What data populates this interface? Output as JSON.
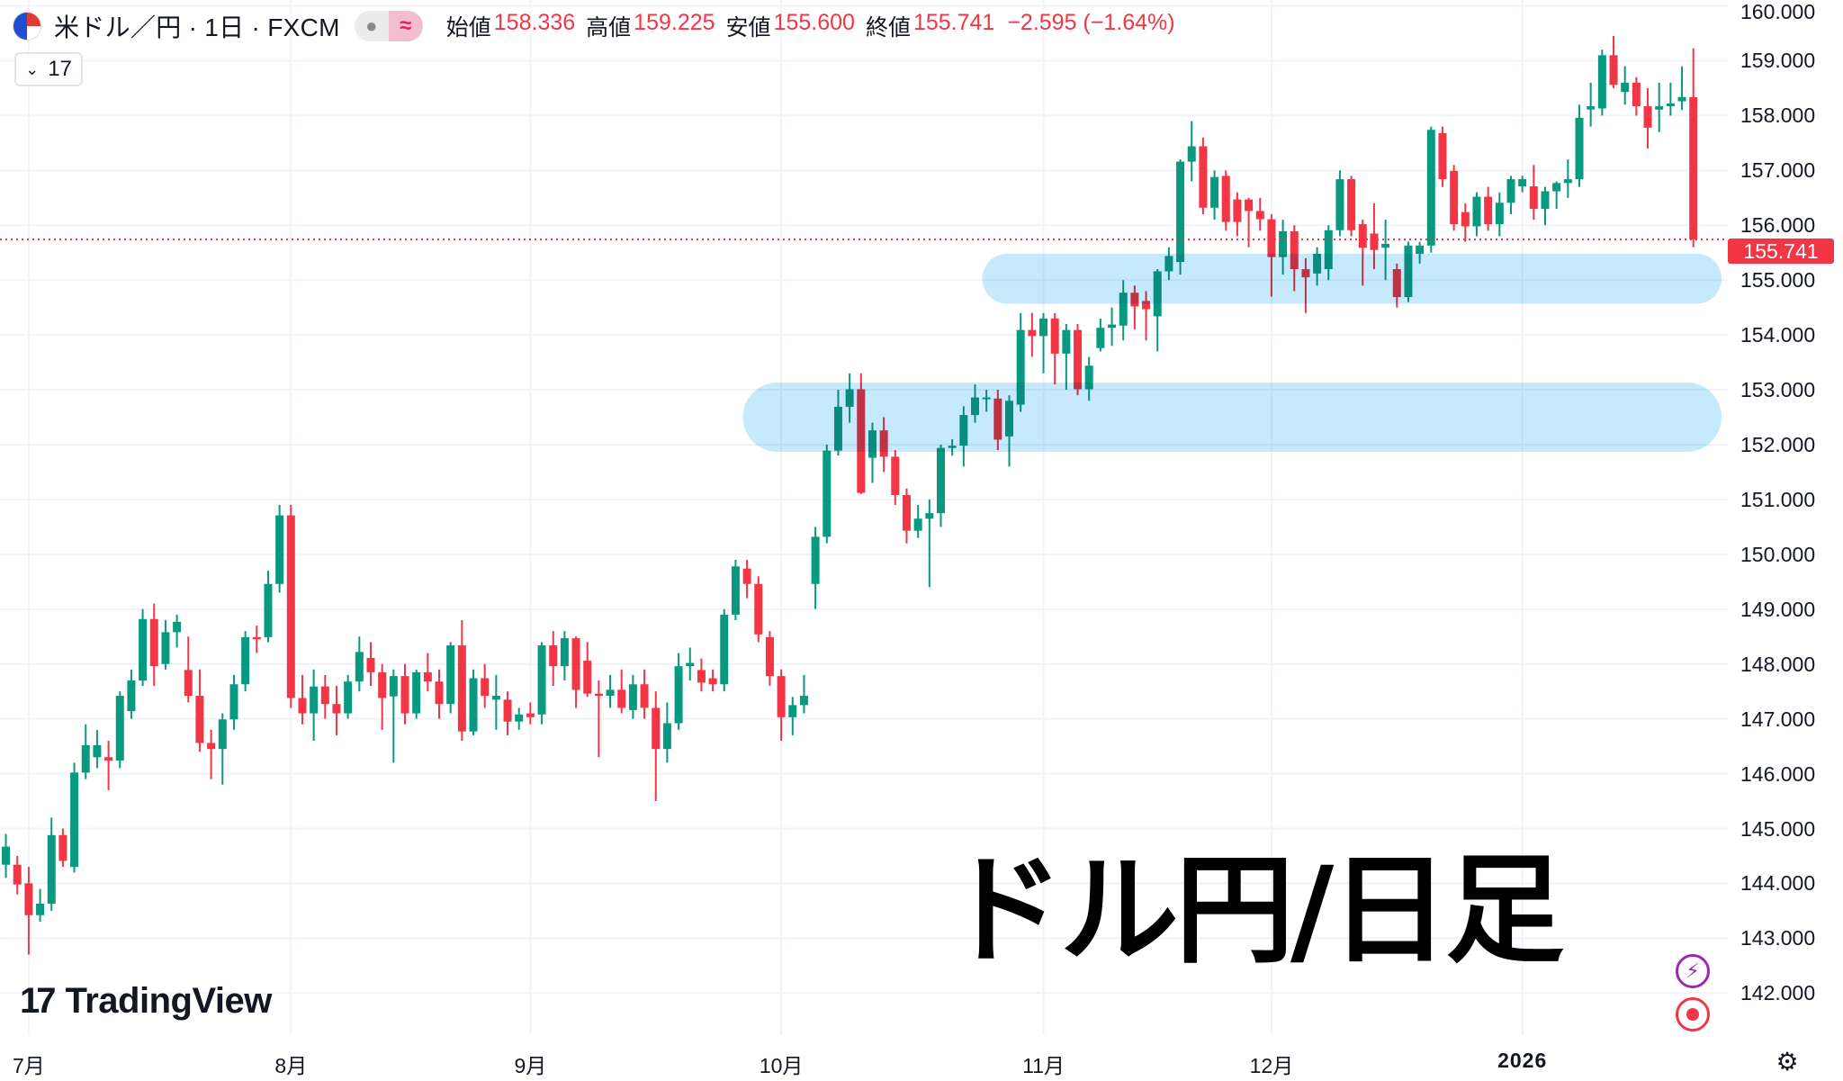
{
  "header": {
    "flag_icon": "us-jp-flag-icon",
    "title": "米ドル／円 · 1日 · FXCM",
    "pill_left": "●",
    "pill_right": "≈",
    "open_label": "始値",
    "open": "158.336",
    "high_label": "高値",
    "high": "159.225",
    "low_label": "安値",
    "low": "155.600",
    "close_label": "終値",
    "close": "155.741",
    "change": "−2.595 (−1.64%)"
  },
  "legend_toggle": {
    "chevron": "⌄",
    "count": "17"
  },
  "current_price_label": "155.741",
  "overlay_text": "ドル円/日足",
  "logo_text": "TradingView",
  "logo_mark": "17",
  "colors": {
    "up": "#089981",
    "down": "#f23645",
    "zone": "#bde5fb",
    "last_price": "#f23645"
  },
  "icons": {
    "bolt": "⚡",
    "settings": "⚙"
  },
  "chart_data": {
    "type": "candlestick",
    "symbol": "米ドル／円",
    "interval": "1日",
    "ylim": [
      142,
      160
    ],
    "y_ticks": [
      "142.000",
      "143.000",
      "144.000",
      "145.000",
      "146.000",
      "147.000",
      "148.000",
      "149.000",
      "150.000",
      "151.000",
      "152.000",
      "153.000",
      "154.000",
      "155.000",
      "156.000",
      "157.000",
      "158.000",
      "159.000",
      "160.000"
    ],
    "x_ticks": [
      {
        "label": "7月",
        "index": 2
      },
      {
        "label": "8月",
        "index": 25
      },
      {
        "label": "9月",
        "index": 46
      },
      {
        "label": "10月",
        "index": 68
      },
      {
        "label": "11月",
        "index": 91
      },
      {
        "label": "12月",
        "index": 111
      },
      {
        "label": "2026",
        "index": 133,
        "bold": true
      }
    ],
    "grid": true,
    "last_price": 155.741,
    "zones": [
      {
        "from": 154.7,
        "to": 155.35,
        "start_index": 88
      },
      {
        "from": 152.0,
        "to": 153.0,
        "start_index": 67
      }
    ],
    "ohlc": [
      [
        144.34,
        144.9,
        144.1,
        144.67
      ],
      [
        144.34,
        144.5,
        143.8,
        143.98
      ],
      [
        144.0,
        144.3,
        142.7,
        143.42
      ],
      [
        143.42,
        143.9,
        143.3,
        143.63
      ],
      [
        143.63,
        145.2,
        143.5,
        144.88
      ],
      [
        144.88,
        145.0,
        144.3,
        144.41
      ],
      [
        144.3,
        146.2,
        144.2,
        146.02
      ],
      [
        146.02,
        146.9,
        145.9,
        146.52
      ],
      [
        146.3,
        146.8,
        146.1,
        146.52
      ],
      [
        146.3,
        146.6,
        145.7,
        146.24
      ],
      [
        146.24,
        147.5,
        146.1,
        147.42
      ],
      [
        147.14,
        147.9,
        147.0,
        147.7
      ],
      [
        147.7,
        149.0,
        147.6,
        148.82
      ],
      [
        148.82,
        149.1,
        147.6,
        147.96
      ],
      [
        148.0,
        148.8,
        147.9,
        148.58
      ],
      [
        148.58,
        148.9,
        148.3,
        148.77
      ],
      [
        147.89,
        148.5,
        147.3,
        147.42
      ],
      [
        147.42,
        147.9,
        146.4,
        146.56
      ],
      [
        146.56,
        146.8,
        145.9,
        146.45
      ],
      [
        146.45,
        147.1,
        145.8,
        146.99
      ],
      [
        146.99,
        147.8,
        146.8,
        147.63
      ],
      [
        147.63,
        148.6,
        147.5,
        148.49
      ],
      [
        148.49,
        148.7,
        148.2,
        148.45
      ],
      [
        148.49,
        149.7,
        148.4,
        149.46
      ],
      [
        149.46,
        150.9,
        149.3,
        150.71
      ],
      [
        150.71,
        150.9,
        147.2,
        147.38
      ],
      [
        147.38,
        147.8,
        146.9,
        147.1
      ],
      [
        147.1,
        147.9,
        146.6,
        147.59
      ],
      [
        147.59,
        147.8,
        147.0,
        147.27
      ],
      [
        147.27,
        147.6,
        146.7,
        147.1
      ],
      [
        147.1,
        147.8,
        147.0,
        147.68
      ],
      [
        147.68,
        148.5,
        147.5,
        148.22
      ],
      [
        148.11,
        148.4,
        147.6,
        147.85
      ],
      [
        147.85,
        148.0,
        146.8,
        147.38
      ],
      [
        147.41,
        147.9,
        146.2,
        147.78
      ],
      [
        147.78,
        148.0,
        146.9,
        147.1
      ],
      [
        147.1,
        147.9,
        147.0,
        147.85
      ],
      [
        147.85,
        148.2,
        147.5,
        147.68
      ],
      [
        147.68,
        147.9,
        147.0,
        147.27
      ],
      [
        147.27,
        148.4,
        147.1,
        148.34
      ],
      [
        148.34,
        148.8,
        146.6,
        146.77
      ],
      [
        146.77,
        147.9,
        146.7,
        147.74
      ],
      [
        147.74,
        148.0,
        147.2,
        147.42
      ],
      [
        147.35,
        147.8,
        146.8,
        147.42
      ],
      [
        147.35,
        147.5,
        146.7,
        146.95
      ],
      [
        146.95,
        147.2,
        146.8,
        147.08
      ],
      [
        147.1,
        147.3,
        146.9,
        147.03
      ],
      [
        147.08,
        148.4,
        146.9,
        148.34
      ],
      [
        148.34,
        148.6,
        147.6,
        147.96
      ],
      [
        147.96,
        148.6,
        147.7,
        148.47
      ],
      [
        148.47,
        148.5,
        147.2,
        147.53
      ],
      [
        148.06,
        148.4,
        147.4,
        147.46
      ],
      [
        147.46,
        147.7,
        146.3,
        147.42
      ],
      [
        147.42,
        147.8,
        147.2,
        147.53
      ],
      [
        147.53,
        147.9,
        147.1,
        147.2
      ],
      [
        147.16,
        147.8,
        147.0,
        147.63
      ],
      [
        147.63,
        147.9,
        147.0,
        147.2
      ],
      [
        147.2,
        147.5,
        145.5,
        146.45
      ],
      [
        146.45,
        147.3,
        146.2,
        146.92
      ],
      [
        146.92,
        148.2,
        146.8,
        147.96
      ],
      [
        147.96,
        148.3,
        147.7,
        148.02
      ],
      [
        147.89,
        148.1,
        147.5,
        147.66
      ],
      [
        147.74,
        147.9,
        147.5,
        147.63
      ],
      [
        147.63,
        149.0,
        147.5,
        148.9
      ],
      [
        148.9,
        149.9,
        148.8,
        149.78
      ],
      [
        149.74,
        149.9,
        149.2,
        149.46
      ],
      [
        149.46,
        149.6,
        148.4,
        148.54
      ],
      [
        148.49,
        148.6,
        147.6,
        147.78
      ],
      [
        147.78,
        147.9,
        146.6,
        147.03
      ],
      [
        147.03,
        147.4,
        146.7,
        147.25
      ],
      [
        147.25,
        147.8,
        147.1,
        147.42
      ],
      [
        149.46,
        150.5,
        149.0,
        150.32
      ],
      [
        150.32,
        152.0,
        150.2,
        151.89
      ],
      [
        151.89,
        153.0,
        151.8,
        152.69
      ],
      [
        152.69,
        153.3,
        152.4,
        153.01
      ],
      [
        153.01,
        153.3,
        151.1,
        151.12
      ],
      [
        151.76,
        152.4,
        151.3,
        152.26
      ],
      [
        152.26,
        152.5,
        151.5,
        151.78
      ],
      [
        151.78,
        151.9,
        150.9,
        151.08
      ],
      [
        151.08,
        151.2,
        150.2,
        150.43
      ],
      [
        150.43,
        150.9,
        150.3,
        150.65
      ],
      [
        150.65,
        151.0,
        149.4,
        150.75
      ],
      [
        150.75,
        152.0,
        150.5,
        151.94
      ],
      [
        151.94,
        152.1,
        151.8,
        151.98
      ],
      [
        151.98,
        152.7,
        151.6,
        152.54
      ],
      [
        152.54,
        153.1,
        152.4,
        152.86
      ],
      [
        152.84,
        153.0,
        152.6,
        152.86
      ],
      [
        152.84,
        153.0,
        151.9,
        152.09
      ],
      [
        152.15,
        152.9,
        151.6,
        152.8
      ],
      [
        152.73,
        154.4,
        152.6,
        154.09
      ],
      [
        154.09,
        154.4,
        153.6,
        153.98
      ],
      [
        153.98,
        154.4,
        153.3,
        154.3
      ],
      [
        154.3,
        154.4,
        153.1,
        153.66
      ],
      [
        153.66,
        154.2,
        153.0,
        154.09
      ],
      [
        154.09,
        154.2,
        152.9,
        153.01
      ],
      [
        153.01,
        153.6,
        152.8,
        153.44
      ],
      [
        153.76,
        154.3,
        153.7,
        154.13
      ],
      [
        154.13,
        154.5,
        153.8,
        154.19
      ],
      [
        154.17,
        155.0,
        153.9,
        154.77
      ],
      [
        154.77,
        154.9,
        154.1,
        154.52
      ],
      [
        154.62,
        154.8,
        153.9,
        154.47
      ],
      [
        154.34,
        155.2,
        153.7,
        155.16
      ],
      [
        155.16,
        155.6,
        155.0,
        155.44
      ],
      [
        155.33,
        157.2,
        155.1,
        157.16
      ],
      [
        157.16,
        157.9,
        156.8,
        157.44
      ],
      [
        157.44,
        157.6,
        156.2,
        156.32
      ],
      [
        156.32,
        157.0,
        156.1,
        156.88
      ],
      [
        156.9,
        157.0,
        155.9,
        156.06
      ],
      [
        156.47,
        156.6,
        155.8,
        156.06
      ],
      [
        156.47,
        156.5,
        155.6,
        156.26
      ],
      [
        156.26,
        156.5,
        155.9,
        156.11
      ],
      [
        156.11,
        156.2,
        154.7,
        155.42
      ],
      [
        155.42,
        156.1,
        155.1,
        155.89
      ],
      [
        155.89,
        156.0,
        154.8,
        155.2
      ],
      [
        155.2,
        155.4,
        154.4,
        155.05
      ],
      [
        155.12,
        155.6,
        154.9,
        155.48
      ],
      [
        155.2,
        156.0,
        155.0,
        155.91
      ],
      [
        155.91,
        157.0,
        155.8,
        156.84
      ],
      [
        156.84,
        156.9,
        155.8,
        155.91
      ],
      [
        156.02,
        156.1,
        154.9,
        155.59
      ],
      [
        155.85,
        156.4,
        155.2,
        155.55
      ],
      [
        155.59,
        156.1,
        155.0,
        155.66
      ],
      [
        155.2,
        155.3,
        154.5,
        154.69
      ],
      [
        154.69,
        155.7,
        154.6,
        155.63
      ],
      [
        155.48,
        155.7,
        155.3,
        155.63
      ],
      [
        155.63,
        157.8,
        155.5,
        157.74
      ],
      [
        157.68,
        157.8,
        156.7,
        156.84
      ],
      [
        156.99,
        157.1,
        155.9,
        156.02
      ],
      [
        156.24,
        156.4,
        155.7,
        155.98
      ],
      [
        155.98,
        156.6,
        155.8,
        156.52
      ],
      [
        156.52,
        156.7,
        155.9,
        156.02
      ],
      [
        156.02,
        156.6,
        155.8,
        156.41
      ],
      [
        156.41,
        156.9,
        156.2,
        156.84
      ],
      [
        156.71,
        156.9,
        156.6,
        156.84
      ],
      [
        156.71,
        157.1,
        156.1,
        156.3
      ],
      [
        156.3,
        156.7,
        156.0,
        156.62
      ],
      [
        156.62,
        156.8,
        156.3,
        156.77
      ],
      [
        156.77,
        157.2,
        156.5,
        156.84
      ],
      [
        156.84,
        158.2,
        156.7,
        157.96
      ],
      [
        158.11,
        158.6,
        157.8,
        158.17
      ],
      [
        158.13,
        159.2,
        158.0,
        159.1
      ],
      [
        159.1,
        159.45,
        158.5,
        158.56
      ],
      [
        158.43,
        158.9,
        158.2,
        158.6
      ],
      [
        158.6,
        158.7,
        158.0,
        158.17
      ],
      [
        158.17,
        158.5,
        157.4,
        157.78
      ],
      [
        158.11,
        158.6,
        157.7,
        158.17
      ],
      [
        158.17,
        158.6,
        158.0,
        158.22
      ],
      [
        158.26,
        158.9,
        158.1,
        158.34
      ],
      [
        158.336,
        159.225,
        155.6,
        155.741
      ]
    ]
  }
}
